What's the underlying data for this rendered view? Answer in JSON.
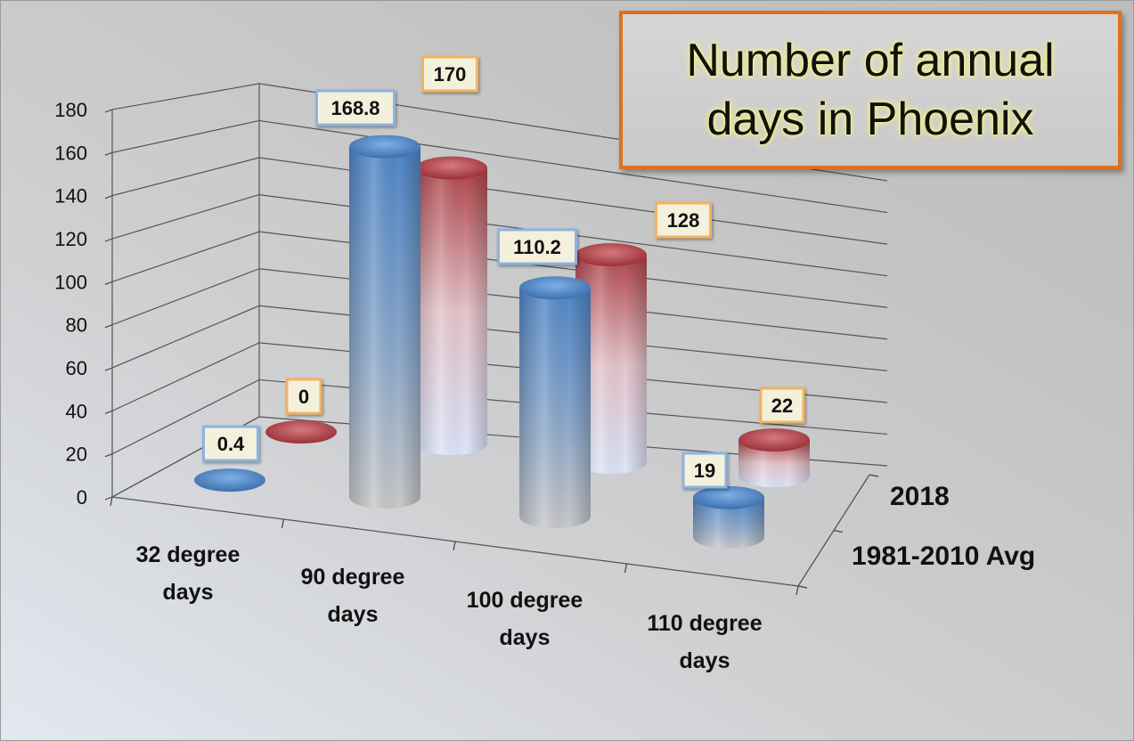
{
  "chart_data": {
    "type": "bar",
    "style": "3d-cylinder",
    "title": "Number of annual days in Phoenix",
    "categories": [
      "32 degree days",
      "90 degree days",
      "100 degree days",
      "110 degree days"
    ],
    "category_lines": [
      [
        "32 degree",
        "days"
      ],
      [
        "90 degree",
        "days"
      ],
      [
        "100 degree",
        "days"
      ],
      [
        "110 degree",
        "days"
      ]
    ],
    "series": [
      {
        "name": "1981-2010 Avg",
        "values": [
          0.4,
          168.8,
          110.2,
          19
        ],
        "labels": [
          "0.4",
          "168.8",
          "110.2",
          "19"
        ],
        "color": "#4f81bd",
        "label_border": "#8db3e2"
      },
      {
        "name": "2018",
        "values": [
          0,
          170,
          128,
          22
        ],
        "labels": [
          "0",
          "170",
          "128",
          "22"
        ],
        "color": "#c0504d",
        "label_border": "#f3b25e"
      }
    ],
    "ylim": [
      0,
      180
    ],
    "yticks": [
      "0",
      "20",
      "40",
      "60",
      "80",
      "100",
      "120",
      "140",
      "160",
      "180"
    ],
    "grid": true,
    "legend": "none",
    "colors": {
      "title_border": "#e0701f",
      "title_glow": "#f4f48a",
      "label_fill": "#f3f1dc"
    }
  }
}
